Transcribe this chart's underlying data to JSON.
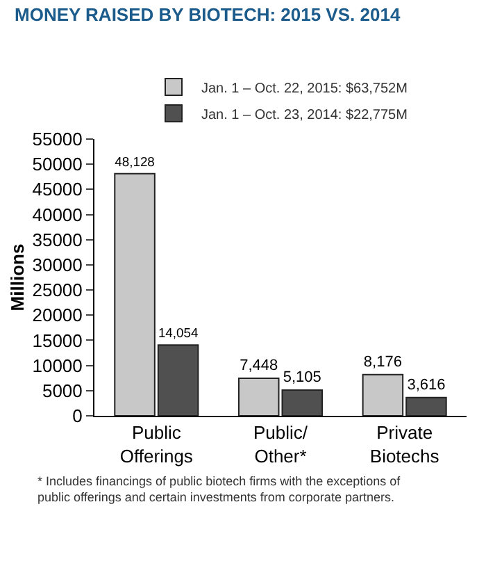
{
  "chart_data": {
    "type": "bar",
    "title": "MONEY RAISED BY BIOTECH: 2015 VS. 2014",
    "ylabel": "Millions",
    "categories": [
      "Public Offerings",
      "Public/Other*",
      "Private Biotechs"
    ],
    "series": [
      {
        "name": "Jan. 1 – Oct. 22, 2015: $63,752M",
        "color": "#c8c8c8",
        "values": [
          48128,
          7448,
          8176
        ],
        "value_labels": [
          "48,128",
          "7,448",
          "8,176"
        ]
      },
      {
        "name": "Jan. 1 – Oct. 23, 2014: $22,775M",
        "color": "#505050",
        "values": [
          14054,
          5105,
          3616
        ],
        "value_labels": [
          "14,054",
          "5,105",
          "3,616"
        ]
      }
    ],
    "ylim": [
      0,
      55000
    ],
    "yticks": [
      0,
      5000,
      10000,
      15000,
      20000,
      25000,
      30000,
      35000,
      40000,
      45000,
      50000,
      55000
    ],
    "legend": "top",
    "annotations": [
      "* Includes financings of public biotech firms with the exceptions of public offerings and certain investments from corporate partners."
    ]
  }
}
